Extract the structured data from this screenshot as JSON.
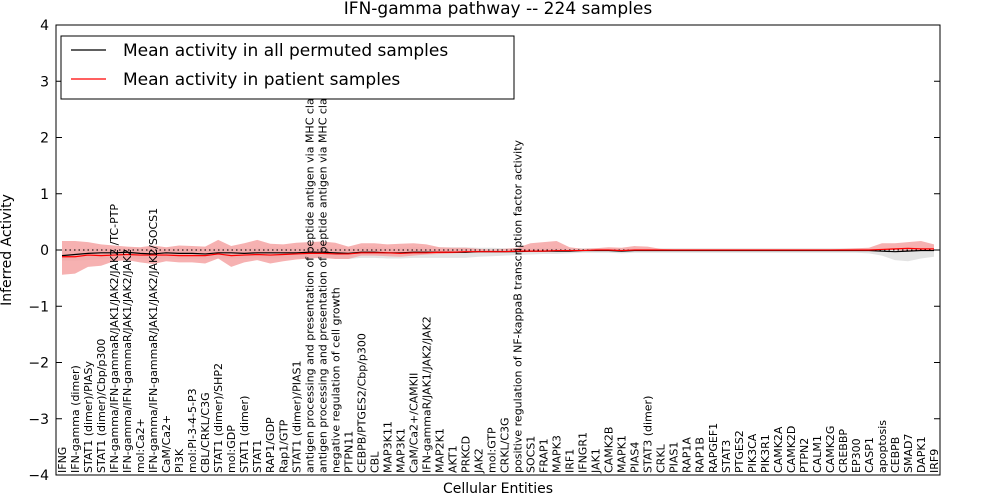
{
  "chart_data": {
    "type": "line",
    "title": "IFN-gamma pathway -- 224 samples",
    "xlabel": "Cellular Entities",
    "ylabel": "Inferred Activity",
    "ylim": [
      -4,
      4
    ],
    "yticks": [
      -4,
      -3,
      -2,
      -1,
      0,
      1,
      2,
      3,
      4
    ],
    "legend": {
      "placement": "upper-left",
      "entries": [
        {
          "label": "Mean activity in all permuted samples",
          "color": "#000000"
        },
        {
          "label": "Mean activity in patient samples",
          "color": "#ff0000"
        }
      ]
    },
    "categories": [
      "IFNG",
      "IFN-gamma (dimer)",
      "STAT1 (dimer)/PIASy",
      "STAT1 (dimer)/Cbp/p300",
      "IFN-gamma/IFN-gammaR/JAK1/JAK2/JAK2 /TC-PTP",
      "IFN-gamma/IFN-gammaR/JAK1/JAK2/JAK2",
      "mol:Ca2+",
      "IFN-gamma/IFN-gammaR/JAK1/JAK2/JAK2/SOCS1",
      "CaM/Ca2+",
      "PI3K",
      "mol:PI-3-4-5-P3",
      "CBL/CRKL/C3G",
      "STAT1 (dimer)/SHP2",
      "mol:GDP",
      "STAT1 (dimer)",
      "STAT1",
      "RAP1/GDP",
      "Rap1/GTP",
      "STAT1 (dimer)/PIAS1",
      "antigen processing and presentation of peptide antigen via MHC class I",
      "antigen processing and presentation of peptide antigen via MHC class II",
      "negative regulation of cell growth",
      "PTPN11",
      "CEBPB/PTGES2/Cbp/p300",
      "CBL",
      "MAP3K11",
      "MAP3K1",
      "CaM/Ca2+/CAMKII",
      "IFN-gammaR/JAK1/JAK2/JAK2",
      "MAP2K1",
      "AKT1",
      "PRKCD",
      "JAK2",
      "mol:GTP",
      "CRKL/C3G",
      "positive regulation of NF-kappaB transcription factor activity",
      "SOCS1",
      "FRAP1",
      "MAPK3",
      "IRF1",
      "IFNGR1",
      "JAK1",
      "CAMK2B",
      "MAPK1",
      "PIAS4",
      "STAT3 (dimer)",
      "CRKL",
      "PIAS1",
      "RAP1A",
      "RAP1B",
      "RAPGEF1",
      "STAT3",
      "PTGES2",
      "PIK3CA",
      "PIK3R1",
      "CAMK2A",
      "CAMK2D",
      "PTPN2",
      "CALM1",
      "CAMK2G",
      "CREBBP",
      "EP300",
      "CASP1",
      "apoptosis",
      "CEBPB",
      "SMAD7",
      "DAPK1",
      "IRF9"
    ],
    "series": [
      {
        "name": "Mean activity in all permuted samples",
        "color": "#000000",
        "values": [
          -0.1,
          -0.08,
          -0.06,
          -0.05,
          -0.05,
          -0.04,
          -0.06,
          -0.07,
          -0.05,
          -0.06,
          -0.06,
          -0.07,
          -0.05,
          -0.05,
          -0.06,
          -0.05,
          -0.05,
          -0.05,
          -0.05,
          -0.04,
          -0.04,
          -0.05,
          -0.06,
          -0.04,
          -0.04,
          -0.05,
          -0.05,
          -0.04,
          -0.04,
          -0.04,
          -0.04,
          -0.04,
          -0.03,
          -0.03,
          -0.03,
          -0.03,
          -0.02,
          -0.02,
          -0.02,
          -0.02,
          -0.01,
          -0.01,
          -0.01,
          -0.02,
          -0.01,
          -0.01,
          -0.01,
          -0.01,
          -0.01,
          -0.01,
          -0.01,
          -0.01,
          -0.01,
          -0.01,
          -0.01,
          -0.01,
          -0.01,
          -0.01,
          -0.01,
          -0.01,
          -0.01,
          -0.01,
          -0.01,
          -0.02,
          -0.03,
          -0.02,
          -0.01,
          -0.01
        ]
      },
      {
        "name": "Mean activity in patient samples",
        "color": "#ff0000",
        "values": [
          -0.12,
          -0.12,
          -0.09,
          -0.1,
          -0.09,
          -0.08,
          -0.09,
          -0.09,
          -0.09,
          -0.1,
          -0.1,
          -0.1,
          -0.07,
          -0.1,
          -0.09,
          -0.08,
          -0.09,
          -0.08,
          -0.07,
          -0.06,
          -0.06,
          -0.07,
          -0.07,
          -0.05,
          -0.05,
          -0.05,
          -0.06,
          -0.05,
          -0.05,
          -0.04,
          -0.04,
          -0.03,
          -0.03,
          -0.03,
          -0.03,
          -0.02,
          -0.02,
          -0.02,
          -0.01,
          -0.01,
          -0.01,
          0.0,
          0.0,
          -0.01,
          0.0,
          0.0,
          0.0,
          0.0,
          0.0,
          0.0,
          0.0,
          0.0,
          0.0,
          0.0,
          0.0,
          0.0,
          0.0,
          0.0,
          0.0,
          0.0,
          0.0,
          0.0,
          0.0,
          0.01,
          0.02,
          0.03,
          0.02,
          0.02
        ]
      }
    ],
    "bands": [
      {
        "series": "Mean activity in all permuted samples",
        "color": "#e3e3e3",
        "lower": [
          -0.19,
          -0.19,
          -0.18,
          -0.16,
          -0.15,
          -0.15,
          -0.16,
          -0.17,
          -0.15,
          -0.16,
          -0.16,
          -0.17,
          -0.15,
          -0.15,
          -0.16,
          -0.15,
          -0.15,
          -0.15,
          -0.15,
          -0.14,
          -0.14,
          -0.15,
          -0.16,
          -0.14,
          -0.14,
          -0.15,
          -0.15,
          -0.14,
          -0.14,
          -0.14,
          -0.14,
          -0.14,
          -0.12,
          -0.11,
          -0.1,
          -0.09,
          -0.08,
          -0.07,
          -0.07,
          -0.06,
          -0.05,
          -0.05,
          -0.05,
          -0.06,
          -0.05,
          -0.05,
          -0.05,
          -0.05,
          -0.05,
          -0.05,
          -0.05,
          -0.05,
          -0.05,
          -0.05,
          -0.05,
          -0.05,
          -0.05,
          -0.05,
          -0.05,
          -0.05,
          -0.05,
          -0.05,
          -0.06,
          -0.1,
          -0.18,
          -0.2,
          -0.15,
          -0.12
        ],
        "upper": [
          0.02,
          0.02,
          0.03,
          0.03,
          0.03,
          0.04,
          0.03,
          0.02,
          0.03,
          0.03,
          0.03,
          0.02,
          0.04,
          0.04,
          0.03,
          0.04,
          0.04,
          0.04,
          0.04,
          0.05,
          0.05,
          0.04,
          0.03,
          0.05,
          0.05,
          0.04,
          0.04,
          0.05,
          0.05,
          0.05,
          0.05,
          0.05,
          0.04,
          0.04,
          0.03,
          0.03,
          0.03,
          0.03,
          0.03,
          0.03,
          0.03,
          0.03,
          0.03,
          0.02,
          0.03,
          0.03,
          0.03,
          0.03,
          0.03,
          0.03,
          0.03,
          0.03,
          0.03,
          0.03,
          0.03,
          0.03,
          0.03,
          0.03,
          0.03,
          0.03,
          0.03,
          0.03,
          0.03,
          0.03,
          0.03,
          0.03,
          0.03,
          0.03
        ]
      },
      {
        "series": "Mean activity in patient samples",
        "color": "#f4a3a3",
        "lower": [
          -0.44,
          -0.42,
          -0.3,
          -0.28,
          -0.2,
          -0.18,
          -0.22,
          -0.25,
          -0.2,
          -0.22,
          -0.22,
          -0.24,
          -0.15,
          -0.3,
          -0.22,
          -0.18,
          -0.24,
          -0.2,
          -0.17,
          -0.15,
          -0.14,
          -0.16,
          -0.16,
          -0.1,
          -0.1,
          -0.11,
          -0.12,
          -0.1,
          -0.08,
          -0.07,
          -0.06,
          -0.05,
          -0.04,
          -0.04,
          -0.04,
          -0.03,
          -0.02,
          -0.02,
          -0.01,
          -0.01,
          -0.01,
          -0.01,
          0.0,
          -0.02,
          0.0,
          0.0,
          0.0,
          0.0,
          0.0,
          0.0,
          0.0,
          0.0,
          0.0,
          0.0,
          0.0,
          0.0,
          0.0,
          0.0,
          0.0,
          0.0,
          0.0,
          0.0,
          0.0,
          0.0,
          0.0,
          -0.02,
          -0.01,
          -0.01
        ],
        "upper": [
          0.16,
          0.16,
          0.14,
          0.1,
          0.08,
          0.06,
          0.05,
          0.08,
          0.05,
          0.08,
          0.07,
          0.06,
          0.18,
          0.07,
          0.12,
          0.18,
          0.11,
          0.1,
          0.13,
          0.14,
          0.15,
          0.13,
          0.06,
          0.12,
          0.12,
          0.1,
          0.11,
          0.12,
          0.1,
          0.05,
          0.04,
          0.04,
          0.02,
          0.01,
          0.02,
          0.04,
          0.12,
          0.14,
          0.16,
          0.05,
          0.02,
          0.03,
          0.05,
          0.04,
          0.07,
          0.06,
          0.02,
          0.01,
          0.01,
          0.01,
          0.01,
          0.01,
          0.01,
          0.01,
          0.01,
          0.01,
          0.01,
          0.01,
          0.01,
          0.01,
          0.02,
          0.03,
          0.04,
          0.12,
          0.12,
          0.14,
          0.16,
          0.1
        ]
      }
    ],
    "baseline": {
      "y": 0,
      "style": "dotted"
    }
  }
}
